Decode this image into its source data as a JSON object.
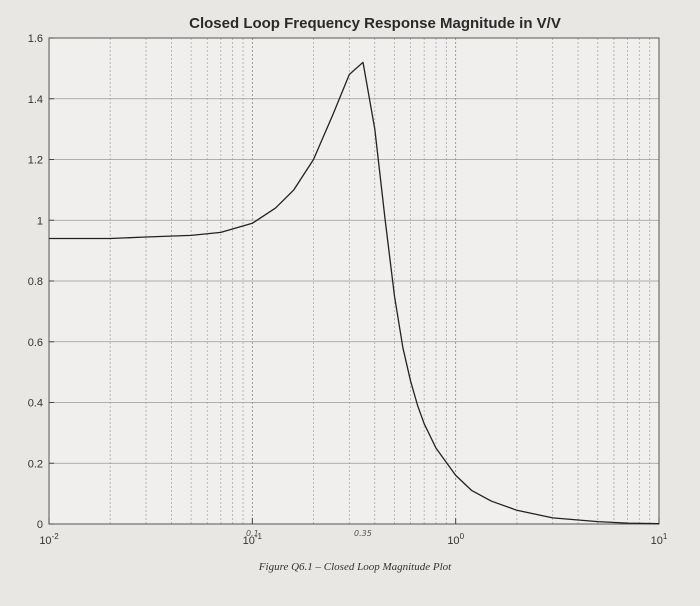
{
  "chart_data": {
    "type": "line",
    "title": "Closed Loop Frequency Response Magnitude in V/V",
    "xscale": "log",
    "xlim": [
      0.01,
      10
    ],
    "ylim": [
      0,
      1.6
    ],
    "y_ticks": [
      "0",
      "0.2",
      "0.4",
      "0.6",
      "0.8",
      "1",
      "1.2",
      "1.4",
      "1.6"
    ],
    "x_ticks": [
      {
        "base": "10",
        "exp": "-2",
        "value": 0.01
      },
      {
        "base": "10",
        "exp": "-1",
        "value": 0.1
      },
      {
        "base": "10",
        "exp": "0",
        "value": 1
      },
      {
        "base": "10",
        "exp": "1",
        "value": 10
      }
    ],
    "grid": true,
    "series": [
      {
        "name": "Closed loop magnitude",
        "x": [
          0.01,
          0.02,
          0.03,
          0.05,
          0.07,
          0.1,
          0.13,
          0.16,
          0.2,
          0.25,
          0.3,
          0.35,
          0.4,
          0.45,
          0.5,
          0.55,
          0.6,
          0.65,
          0.7,
          0.8,
          1,
          1.2,
          1.5,
          2,
          3,
          5,
          7,
          10
        ],
        "values": [
          0.94,
          0.94,
          0.945,
          0.95,
          0.96,
          0.99,
          1.04,
          1.1,
          1.2,
          1.35,
          1.48,
          1.52,
          1.3,
          1.0,
          0.75,
          0.58,
          0.47,
          0.39,
          0.33,
          0.25,
          0.16,
          0.11,
          0.075,
          0.045,
          0.02,
          0.008,
          0.003,
          0.001
        ]
      }
    ],
    "annotations": [
      {
        "text": "0.35",
        "x": 0.35
      },
      {
        "text": "0.1",
        "x": 0.1
      }
    ],
    "caption": "Figure Q6.1 – Closed Loop Magnitude Plot"
  }
}
